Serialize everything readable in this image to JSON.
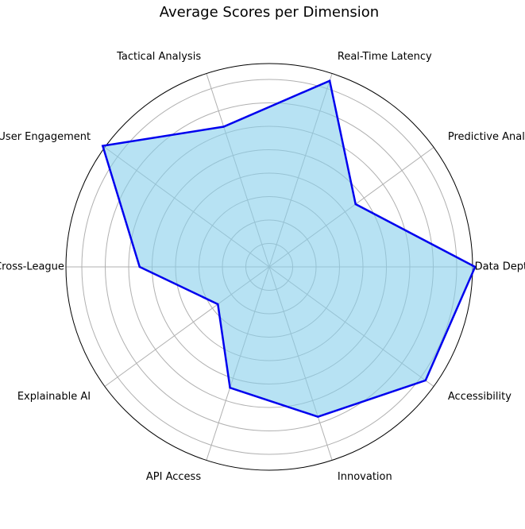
{
  "chart_data": {
    "type": "radar",
    "title": "Average Scores per Dimension",
    "categories": [
      "Data Depth",
      "Predictive Analytics",
      "Real-Time Latency",
      "Tactical Analysis",
      "User Engagement",
      "Cross-League",
      "Explainable AI",
      "API Access",
      "Innovation",
      "Accessibility"
    ],
    "series": [
      {
        "values": [
          8.1,
          4.2,
          7.7,
          5.8,
          8.1,
          5.1,
          2.5,
          5.0,
          6.2,
          7.6
        ]
      }
    ],
    "rlim": [
      0,
      8.0
    ],
    "grid": true,
    "colors": {
      "line": "#0000ee",
      "fill": "#87ceeb",
      "grid": "#b0b0b0",
      "frame": "#000000"
    }
  }
}
